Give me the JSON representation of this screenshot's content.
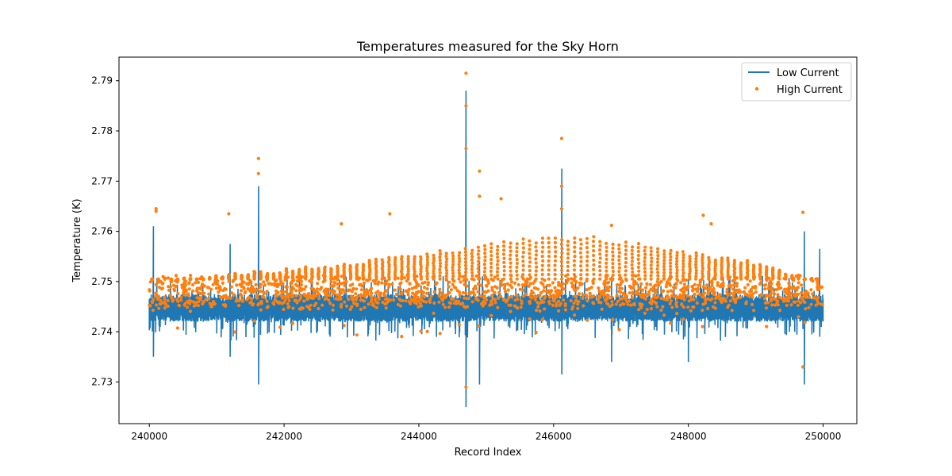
{
  "chart_data": {
    "type": "line",
    "title": "Temperatures measured for the Sky Horn",
    "xlabel": "Record Index",
    "ylabel": "Temperature (K)",
    "xlim": [
      239550,
      250500
    ],
    "ylim": [
      2.7217,
      2.7947
    ],
    "x_ticks": [
      240000,
      242000,
      244000,
      246000,
      248000,
      250000
    ],
    "x_tick_labels": [
      "240000",
      "242000",
      "244000",
      "246000",
      "248000",
      "250000"
    ],
    "y_ticks": [
      2.73,
      2.74,
      2.75,
      2.76,
      2.77,
      2.78,
      2.79
    ],
    "y_tick_labels": [
      "2.73",
      "2.74",
      "2.75",
      "2.76",
      "2.77",
      "2.78",
      "2.79"
    ],
    "grid": false,
    "legend_position": "top-right",
    "series": [
      {
        "name": "Low Current",
        "style": "line",
        "color": "#1f77b4",
        "baseline": 2.7445,
        "band": [
          2.742,
          2.7475
        ],
        "spikes": [
          {
            "x": 240060,
            "min": 2.735,
            "max": 2.761
          },
          {
            "x": 241200,
            "min": 2.735,
            "max": 2.7575
          },
          {
            "x": 241620,
            "min": 2.7295,
            "max": 2.769
          },
          {
            "x": 244700,
            "min": 2.725,
            "max": 2.788
          },
          {
            "x": 244900,
            "min": 2.7295,
            "max": 2.754
          },
          {
            "x": 246120,
            "min": 2.7315,
            "max": 2.7725
          },
          {
            "x": 246860,
            "min": 2.734,
            "max": 2.751
          },
          {
            "x": 248000,
            "min": 2.734,
            "max": 2.7505
          },
          {
            "x": 249720,
            "min": 2.7295,
            "max": 2.76
          },
          {
            "x": 249950,
            "min": 2.739,
            "max": 2.7565
          }
        ]
      },
      {
        "name": "High Current",
        "style": "scatter",
        "color": "#ff7f0e",
        "baseline": 2.7475,
        "band": [
          2.745,
          2.7505
        ],
        "envelope": [
          {
            "x": 240000,
            "top": 2.7505
          },
          {
            "x": 242000,
            "top": 2.7525
          },
          {
            "x": 244000,
            "top": 2.7555
          },
          {
            "x": 245500,
            "top": 2.7585
          },
          {
            "x": 246500,
            "top": 2.7592
          },
          {
            "x": 248000,
            "top": 2.756
          },
          {
            "x": 249000,
            "top": 2.754
          },
          {
            "x": 250000,
            "top": 2.75
          }
        ],
        "outliers": [
          {
            "x": 240100,
            "y": 2.7645
          },
          {
            "x": 240100,
            "y": 2.764
          },
          {
            "x": 241180,
            "y": 2.7635
          },
          {
            "x": 241620,
            "y": 2.7745
          },
          {
            "x": 241620,
            "y": 2.7715
          },
          {
            "x": 242850,
            "y": 2.7615
          },
          {
            "x": 243570,
            "y": 2.7635
          },
          {
            "x": 244700,
            "y": 2.7915
          },
          {
            "x": 244700,
            "y": 2.785
          },
          {
            "x": 244700,
            "y": 2.7765
          },
          {
            "x": 244700,
            "y": 2.729
          },
          {
            "x": 244900,
            "y": 2.772
          },
          {
            "x": 244900,
            "y": 2.767
          },
          {
            "x": 245220,
            "y": 2.7665
          },
          {
            "x": 246120,
            "y": 2.7785
          },
          {
            "x": 246120,
            "y": 2.769
          },
          {
            "x": 246120,
            "y": 2.7645
          },
          {
            "x": 246860,
            "y": 2.7612
          },
          {
            "x": 248220,
            "y": 2.7632
          },
          {
            "x": 248340,
            "y": 2.7615
          },
          {
            "x": 249700,
            "y": 2.7638
          },
          {
            "x": 249700,
            "y": 2.733
          }
        ]
      }
    ]
  }
}
